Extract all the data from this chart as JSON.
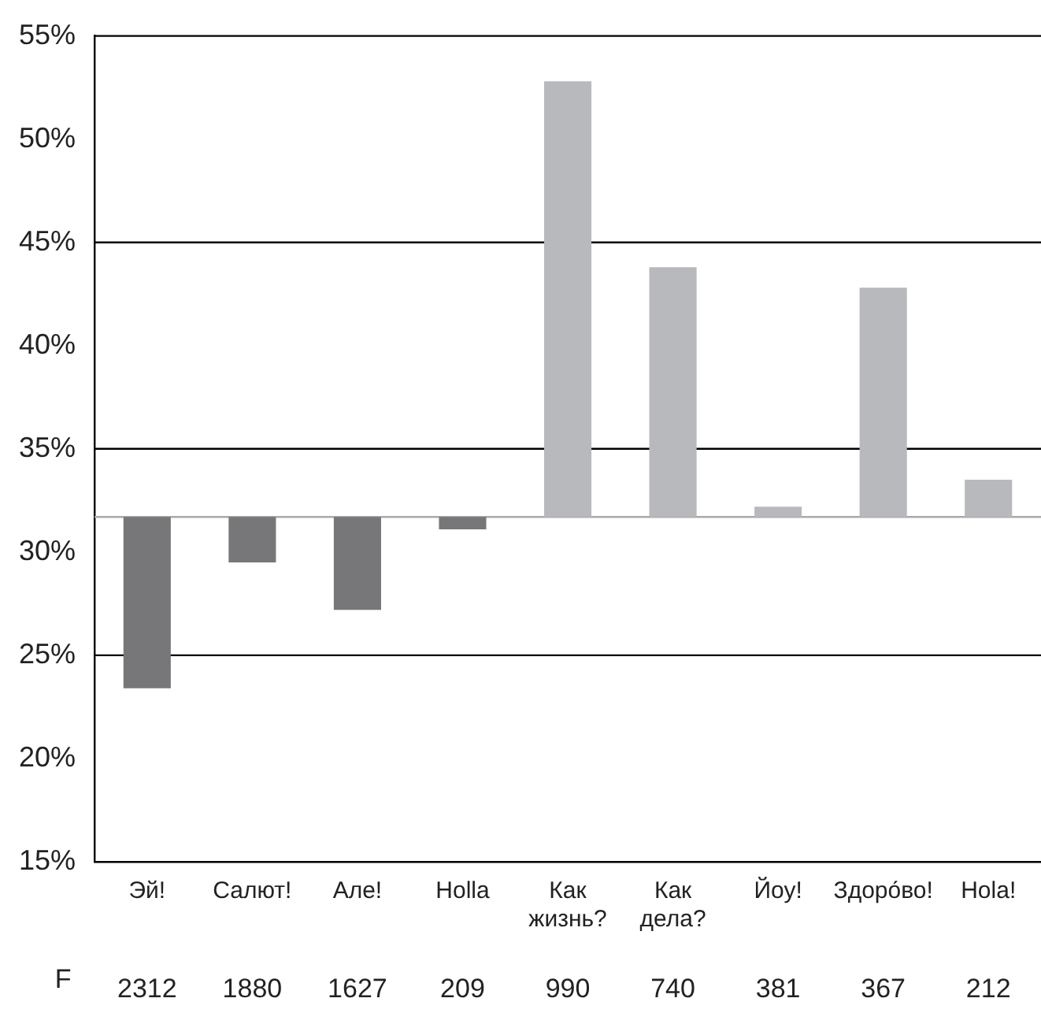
{
  "chart_data": {
    "type": "bar",
    "categories": [
      "Эй!",
      "Салют!",
      "Але!",
      "Holla",
      "Как жизнь?",
      "Как дела?",
      "Йоу!",
      "Здоро́во!",
      "Hola!"
    ],
    "base": [
      31.7,
      31.7,
      31.7,
      31.7,
      31.7,
      31.7,
      31.7,
      31.7,
      31.7
    ],
    "values": [
      -8.3,
      -2.2,
      -4.5,
      -0.6,
      21.1,
      12.1,
      0.5,
      11.1,
      1.8
    ],
    "colors": [
      "#77777a",
      "#77777a",
      "#77777a",
      "#77777a",
      "#b8b9bd",
      "#b8b9bd",
      "#b8b9bd",
      "#b8b9bd",
      "#b8b9bd"
    ],
    "ylim": [
      15,
      55
    ],
    "yticks": [
      {
        "value": 15,
        "label": "15%"
      },
      {
        "value": 20,
        "label": "20%"
      },
      {
        "value": 25,
        "label": "25%"
      },
      {
        "value": 30,
        "label": "30%"
      },
      {
        "value": 35,
        "label": "35%"
      },
      {
        "value": 40,
        "label": "40%"
      },
      {
        "value": 45,
        "label": "45%"
      },
      {
        "value": 50,
        "label": "50%"
      },
      {
        "value": 55,
        "label": "55%"
      }
    ],
    "ref_lines": [
      {
        "axis": "y",
        "value": 25,
        "color": "#000000"
      },
      {
        "axis": "y",
        "value": 35,
        "color": "#000000"
      },
      {
        "axis": "y",
        "value": 45,
        "color": "#000000"
      },
      {
        "axis": "y",
        "value": 31.7,
        "color": "#aaaaaa"
      }
    ],
    "annotations": [
      "F",
      "2312",
      "1880",
      "1627",
      "209",
      "990",
      "740",
      "381",
      "367",
      "212"
    ],
    "grid": false,
    "legend": false
  }
}
